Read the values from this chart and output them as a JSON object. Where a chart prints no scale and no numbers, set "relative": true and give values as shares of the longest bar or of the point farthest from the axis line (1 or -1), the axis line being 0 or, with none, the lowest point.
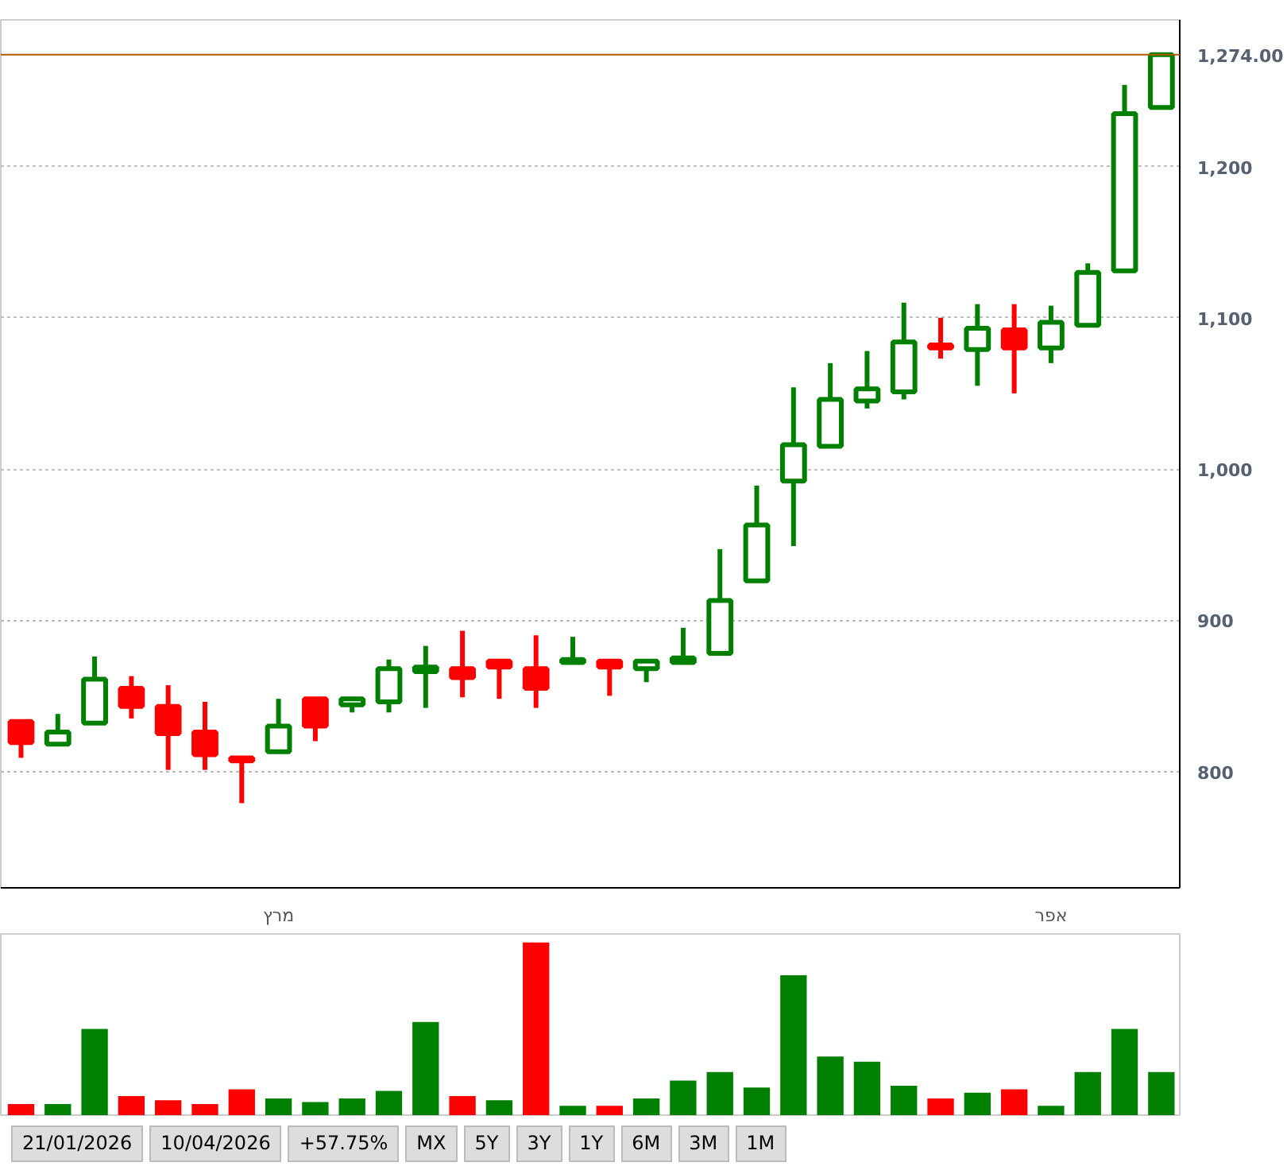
{
  "chart_data": [
    {
      "type": "candlestick",
      "categories": [
        null,
        null,
        null,
        null,
        null,
        null,
        null,
        "מרץ",
        null,
        null,
        null,
        null,
        null,
        null,
        null,
        null,
        null,
        null,
        null,
        null,
        null,
        null,
        null,
        null,
        null,
        null,
        null,
        null,
        "אפר",
        null,
        null,
        null
      ],
      "ohlc": [
        [
          833,
          833,
          809,
          819
        ],
        [
          818,
          838,
          818,
          826
        ],
        [
          832,
          876,
          832,
          861
        ],
        [
          855,
          863,
          835,
          843
        ],
        [
          843,
          857,
          801,
          825
        ],
        [
          826,
          846,
          801,
          811
        ],
        [
          809,
          809,
          779,
          807
        ],
        [
          813,
          848,
          813,
          830
        ],
        [
          848,
          848,
          820,
          830
        ],
        [
          844,
          848,
          839,
          848
        ],
        [
          846,
          874,
          839,
          868
        ],
        [
          866,
          883,
          842,
          869
        ],
        [
          868,
          893,
          849,
          862
        ],
        [
          873,
          873,
          848,
          869
        ],
        [
          868,
          890,
          842,
          855
        ],
        [
          872,
          889,
          872,
          874
        ],
        [
          873,
          873,
          850,
          869
        ],
        [
          868,
          873,
          859,
          873
        ],
        [
          872,
          895,
          872,
          875
        ],
        [
          878,
          947,
          878,
          913
        ],
        [
          926,
          989,
          926,
          963
        ],
        [
          992,
          1054,
          949,
          1016
        ],
        [
          1015,
          1070,
          1015,
          1046
        ],
        [
          1045,
          1078,
          1040,
          1053
        ],
        [
          1051,
          1110,
          1046,
          1084
        ],
        [
          1082,
          1100,
          1073,
          1080
        ],
        [
          1079,
          1109,
          1055,
          1093
        ],
        [
          1092,
          1109,
          1050,
          1080
        ],
        [
          1080,
          1108,
          1070,
          1097
        ],
        [
          1095,
          1136,
          1095,
          1130
        ],
        [
          1131,
          1254,
          1131,
          1235
        ],
        [
          1239,
          1274,
          1239,
          1274
        ]
      ],
      "colors": [
        "#ff0000",
        "#008000",
        "#008000",
        "#ff0000",
        "#ff0000",
        "#ff0000",
        "#ff0000",
        "#008000",
        "#ff0000",
        "#008000",
        "#008000",
        "#008000",
        "#ff0000",
        "#ff0000",
        "#ff0000",
        "#008000",
        "#ff0000",
        "#008000",
        "#008000",
        "#008000",
        "#008000",
        "#008000",
        "#008000",
        "#008000",
        "#008000",
        "#ff0000",
        "#008000",
        "#ff0000",
        "#008000",
        "#008000",
        "#008000",
        "#008000"
      ],
      "ylim": [
        723,
        1297
      ],
      "yticks": [
        800,
        900,
        {
          "value": 1000,
          "label": "1,000"
        },
        {
          "value": 1100,
          "label": "1,100"
        },
        {
          "value": 1200,
          "label": "1,200"
        }
      ],
      "grid": "y",
      "ref_lines": [
        {
          "axis": "y",
          "value": 1274,
          "label": "1,274.00",
          "color": "#b35900"
        }
      ]
    },
    {
      "type": "bar",
      "relative": true,
      "categories": [
        null,
        null,
        null,
        null,
        null,
        null,
        null,
        null,
        null,
        null,
        null,
        null,
        null,
        null,
        null,
        null,
        null,
        null,
        null,
        null,
        null,
        null,
        null,
        null,
        null,
        null,
        null,
        null,
        null,
        null,
        null,
        null
      ],
      "values": [
        0.065,
        0.065,
        0.5,
        0.11,
        0.086,
        0.065,
        0.15,
        0.097,
        0.076,
        0.097,
        0.14,
        0.54,
        0.11,
        0.086,
        1,
        0.054,
        0.054,
        0.097,
        0.2,
        0.25,
        0.16,
        0.81,
        0.34,
        0.31,
        0.17,
        0.097,
        0.13,
        0.15,
        0.054,
        0.25,
        0.5,
        0.25
      ],
      "colors": [
        "#ff0000",
        "#008000",
        "#008000",
        "#ff0000",
        "#ff0000",
        "#ff0000",
        "#ff0000",
        "#008000",
        "#008000",
        "#008000",
        "#008000",
        "#008000",
        "#ff0000",
        "#008000",
        "#ff0000",
        "#008000",
        "#ff0000",
        "#008000",
        "#008000",
        "#008000",
        "#008000",
        "#008000",
        "#008000",
        "#008000",
        "#008000",
        "#ff0000",
        "#008000",
        "#ff0000",
        "#008000",
        "#008000",
        "#008000",
        "#008000"
      ],
      "annotations": [
        "21/01/2026",
        "10/04/2026",
        "+57.75%",
        "MX",
        "5Y",
        "3Y",
        "1Y",
        "6M",
        "3M",
        "1M"
      ]
    }
  ]
}
